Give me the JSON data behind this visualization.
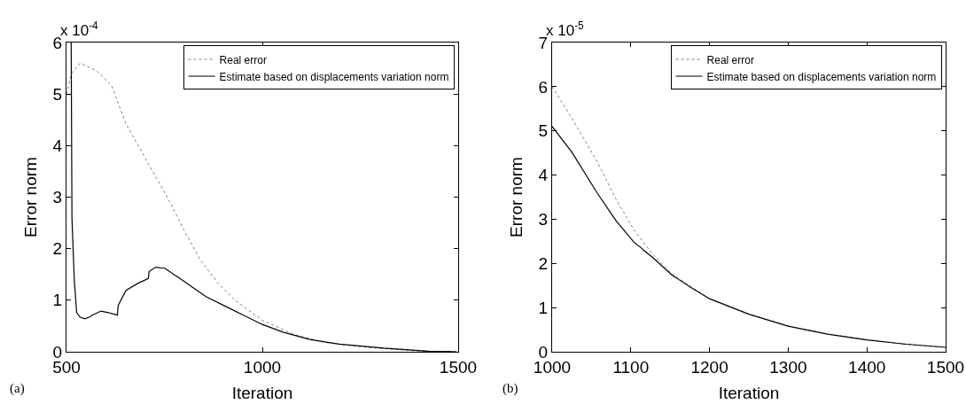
{
  "chart_data": [
    {
      "type": "line",
      "xlabel": "Iteration",
      "ylabel": "Error norm",
      "annotations": [
        "x 10$^{-4}$",
        "(a)"
      ],
      "xlim": [
        500,
        1500
      ],
      "xticks": [
        500,
        1000,
        1500
      ],
      "ylim": [
        0,
        6
      ],
      "yticks": [
        0,
        1,
        2,
        3,
        4,
        5,
        6
      ],
      "grid": false,
      "legend": "top right",
      "series": [
        {
          "name": "Real error",
          "color": "#808080",
          "line_style": "dotted",
          "x": [
            500,
            513,
            535,
            577,
            615,
            652,
            683,
            720,
            758,
            796,
            841,
            887,
            932,
            1000,
            1083,
            1159,
            1272,
            1385,
            1495
          ],
          "values": [
            5.0,
            5.4,
            5.6,
            5.45,
            5.17,
            4.42,
            4.0,
            3.5,
            2.99,
            2.42,
            1.79,
            1.33,
            0.99,
            0.61,
            0.33,
            0.18,
            0.08,
            0.02,
            0.0
          ]
        },
        {
          "name": "Estimate based on displacements variation norm",
          "color": "#000000",
          "line_style": "solid",
          "x": [
            512,
            514,
            520,
            526,
            535,
            547,
            558,
            566,
            588,
            607,
            630,
            632,
            652,
            683,
            709,
            711,
            728,
            751,
            796,
            856,
            909,
            954,
            1000,
            1053,
            1121,
            1196,
            1310,
            1423,
            1495
          ],
          "values": [
            6.0,
            2.59,
            1.39,
            0.76,
            0.67,
            0.64,
            0.67,
            0.71,
            0.79,
            0.76,
            0.71,
            0.9,
            1.19,
            1.33,
            1.42,
            1.56,
            1.64,
            1.62,
            1.39,
            1.07,
            0.87,
            0.7,
            0.53,
            0.38,
            0.24,
            0.15,
            0.07,
            0.01,
            0.0
          ]
        }
      ]
    },
    {
      "type": "line",
      "xlabel": "Iteration",
      "ylabel": "Error norm",
      "annotations": [
        "x 10$^{-5}$",
        "(b)"
      ],
      "xlim": [
        1000,
        1500
      ],
      "xticks": [
        1000,
        1100,
        1200,
        1300,
        1400,
        1500
      ],
      "ylim": [
        0,
        7
      ],
      "yticks": [
        0,
        1,
        2,
        3,
        4,
        5,
        6,
        7
      ],
      "grid": false,
      "legend": "top right",
      "series": [
        {
          "name": "Real error",
          "color": "#808080",
          "line_style": "dotted",
          "x": [
            1000,
            1025,
            1057,
            1081,
            1104,
            1128,
            1152,
            1176,
            1200,
            1250,
            1300,
            1350,
            1400,
            1450,
            1500
          ],
          "values": [
            6.0,
            5.29,
            4.31,
            3.46,
            2.76,
            2.2,
            1.77,
            1.48,
            1.2,
            0.85,
            0.58,
            0.4,
            0.27,
            0.17,
            0.1
          ]
        },
        {
          "name": "Estimate based on displacements variation norm",
          "color": "#000000",
          "line_style": "solid",
          "x": [
            1000,
            1025,
            1057,
            1081,
            1104,
            1114,
            1116,
            1128,
            1152,
            1176,
            1200,
            1250,
            1300,
            1350,
            1400,
            1450,
            1500
          ],
          "values": [
            5.1,
            4.52,
            3.6,
            2.97,
            2.48,
            2.34,
            2.3,
            2.13,
            1.74,
            1.46,
            1.2,
            0.85,
            0.58,
            0.4,
            0.27,
            0.17,
            0.1
          ]
        }
      ]
    }
  ]
}
